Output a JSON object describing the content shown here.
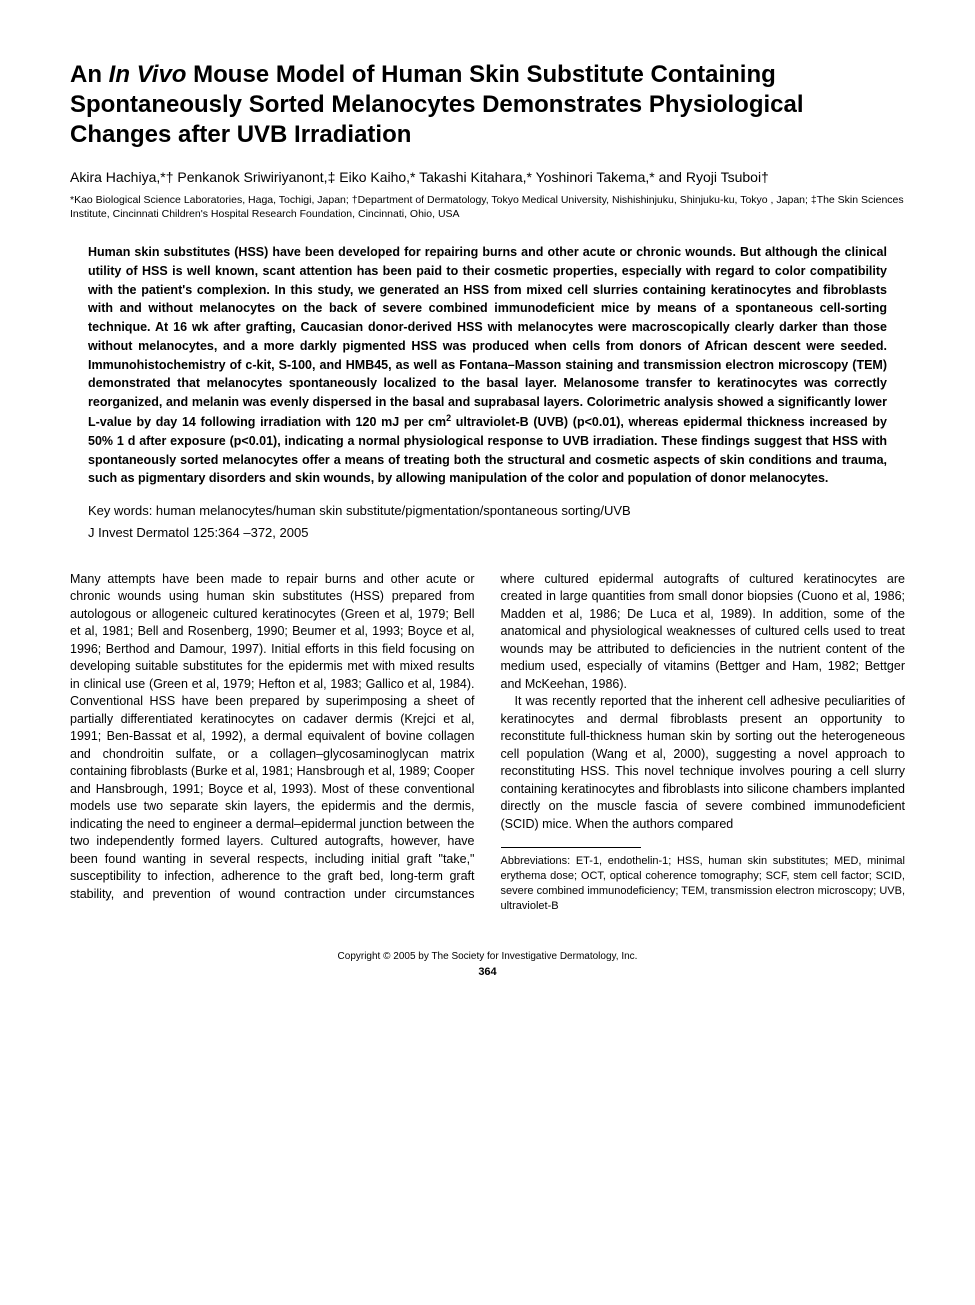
{
  "title_pre": "An ",
  "title_italic": "In Vivo",
  "title_post": " Mouse Model of Human Skin Substitute Containing Spontaneously Sorted Melanocytes Demonstrates Physiological Changes after UVB Irradiation",
  "authors_html": "Akira Hachiya,*† Penkanok Sriwiriyanont,‡ Eiko Kaiho,* Takashi Kitahara,* Yoshinori Takema,* and Ryoji Tsuboi†",
  "affiliations": "*Kao Biological Science Laboratories, Haga, Tochigi, Japan; †Department of Dermatology, Tokyo Medical University, Nishishinjuku, Shinjuku-ku, Tokyo , Japan; ‡The Skin Sciences Institute, Cincinnati Children's Hospital Research Foundation, Cincinnati, Ohio, USA",
  "abstract_pre": "Human skin substitutes (HSS) have been developed for repairing burns and other acute or chronic wounds. But although the clinical utility of HSS is well known, scant attention has been paid to their cosmetic properties, especially with regard to color compatibility with the patient's complexion. In this study, we generated an HSS from mixed cell slurries containing keratinocytes and fibroblasts with and without melanocytes on the back of severe combined immunodeficient mice by means of a spontaneous cell-sorting technique. At 16 wk after grafting, Caucasian donor-derived HSS with melanocytes were macroscopically clearly darker than those without melanocytes, and a more darkly pigmented HSS was produced when cells from donors of African descent were seeded. Immunohistochemistry of c-kit, S-100, and HMB45, as well as Fontana–Masson staining and transmission electron microscopy (TEM) demonstrated that melanocytes spontaneously localized to the basal layer. Melanosome transfer to keratinocytes was correctly reorganized, and melanin was evenly dispersed in the basal and suprabasal layers. Colorimetric analysis showed a significantly lower L-value by day 14 following irradiation with 120 mJ per cm",
  "abstract_sup": "2",
  "abstract_post": " ultraviolet-B (UVB) (p<0.01), whereas epidermal thickness increased by 50% 1 d after exposure (p<0.01), indicating a normal physiological response to UVB irradiation. These findings suggest that HSS with spontaneously sorted melanocytes offer a means of treating both the structural and cosmetic aspects of skin conditions and trauma, such as pigmentary disorders and skin wounds, by allowing manipulation of the color and population of donor melanocytes.",
  "keywords": "Key words: human melanocytes/human skin substitute/pigmentation/spontaneous sorting/UVB",
  "citation": "J Invest Dermatol 125:364 –372, 2005",
  "body_p1": "Many attempts have been made to repair burns and other acute or chronic wounds using human skin substitutes (HSS) prepared from autologous or allogeneic cultured keratinocytes (Green et al, 1979; Bell et al, 1981; Bell and Rosenberg, 1990; Beumer et al, 1993; Boyce et al, 1996; Berthod and Damour, 1997). Initial efforts in this field focusing on developing suitable substitutes for the epidermis met with mixed results in clinical use (Green et al, 1979; Hefton et al, 1983; Gallico et al, 1984). Conventional HSS have been prepared by superimposing a sheet of partially differentiated keratinocytes on cadaver dermis (Krejci et al, 1991; Ben-Bassat et al, 1992), a dermal equivalent of bovine collagen and chondroitin sulfate, or a collagen–glycosaminoglycan matrix containing fibroblasts (Burke et al, 1981; Hansbrough et al, 1989; Cooper and Hansbrough, 1991; Boyce et al, 1993). Most of these conventional models use two separate skin layers, the epidermis and the dermis, indicating the need to engineer a dermal–epidermal junction between the two independently formed layers. Cultured autografts, however, have been found wanting in several respects, including initial graft \"take,\" susceptibility to infection, adherence to the graft bed, long-term graft stability, and prevention of wound contraction under circumstances where cultured epidermal autografts of cultured keratinocytes are created in large quantities from small donor biopsies (Cuono et al, 1986; Madden et al, 1986; De Luca et al, 1989). In addition, some of the anatomical and physiological weaknesses of cultured cells used to treat wounds may be attributed to deficiencies in the nutrient content of the medium used, especially of vitamins (Bettger and Ham, 1982; Bettger and McKeehan, 1986).",
  "body_p2": "It was recently reported that the inherent cell adhesive peculiarities of keratinocytes and dermal fibroblasts present an opportunity to reconstitute full-thickness human skin by sorting out the heterogeneous cell population (Wang et al, 2000), suggesting a novel approach to reconstituting HSS. This novel technique involves pouring a cell slurry containing keratinocytes and fibroblasts into silicone chambers implanted directly on the muscle fascia of severe combined immunodeficient (SCID) mice. When the authors compared",
  "abbreviations": "Abbreviations: ET-1, endothelin-1; HSS, human skin substitutes; MED, minimal erythema dose; OCT, optical coherence tomography; SCF, stem cell factor; SCID, severe combined immunodeficiency; TEM, transmission electron microscopy; UVB, ultraviolet-B",
  "copyright": "Copyright © 2005 by The Society for Investigative Dermatology, Inc.",
  "page_number": "364"
}
